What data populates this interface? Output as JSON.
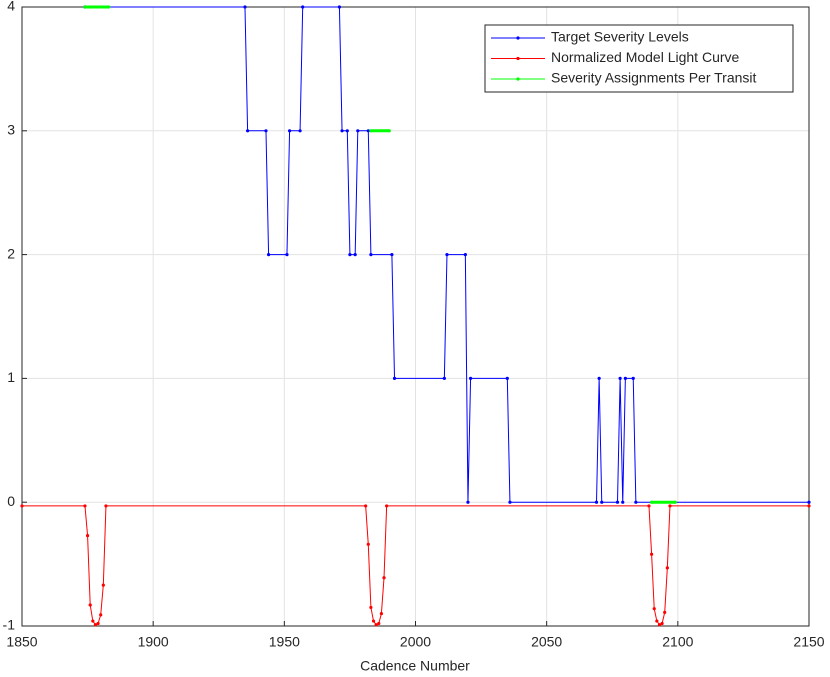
{
  "chart_data": {
    "type": "line",
    "xlabel": "Cadence Number",
    "xlim": [
      1850,
      2150
    ],
    "xticks": [
      1850,
      1900,
      1950,
      2000,
      2050,
      2100,
      2150
    ],
    "ylim": [
      -1,
      4
    ],
    "yticks": [
      -1,
      0,
      1,
      2,
      3,
      4
    ],
    "grid": true,
    "legend": "upper right",
    "series": [
      {
        "name": "Target Severity Levels",
        "color": "#0000ff",
        "x": [
          1874,
          1935,
          1936,
          1943,
          1944,
          1951,
          1952,
          1956,
          1957,
          1971,
          1972,
          1974,
          1975,
          1977,
          1978,
          1982,
          1983,
          1991,
          1992,
          2011,
          2012,
          2019,
          2020,
          2021,
          2035,
          2036,
          2069,
          2070,
          2071,
          2077,
          2078,
          2079,
          2080,
          2083,
          2084,
          2150
        ],
        "values": [
          4,
          4,
          3,
          3,
          2,
          2,
          3,
          3,
          4,
          4,
          3,
          3,
          2,
          2,
          3,
          3,
          2,
          2,
          1,
          1,
          2,
          2,
          0,
          1,
          1,
          0,
          0,
          1,
          0,
          0,
          1,
          0,
          1,
          1,
          0,
          0
        ]
      },
      {
        "name": "Normalized Model Light Curve",
        "color": "#ff0000",
        "x": [
          1850,
          1874,
          1875,
          1876,
          1877,
          1878,
          1879,
          1880,
          1881,
          1882,
          1981,
          1982,
          1983,
          1984,
          1985,
          1986,
          1987,
          1988,
          1989,
          2089,
          2090,
          2091,
          2092,
          2093,
          2094,
          2095,
          2096,
          2097,
          2150
        ],
        "values": [
          -0.03,
          -0.03,
          -0.27,
          -0.83,
          -0.96,
          -0.99,
          -0.98,
          -0.91,
          -0.67,
          -0.03,
          -0.03,
          -0.34,
          -0.85,
          -0.96,
          -0.99,
          -0.98,
          -0.9,
          -0.61,
          -0.03,
          -0.03,
          -0.42,
          -0.86,
          -0.96,
          -0.99,
          -0.98,
          -0.89,
          -0.53,
          -0.03,
          -0.03
        ]
      },
      {
        "name": "Severity Assignments Per Transit",
        "color": "#00ff00",
        "x": [
          1874,
          1883,
          null,
          1983,
          1990,
          null,
          2090,
          2099
        ],
        "values": [
          4,
          4,
          null,
          3,
          3,
          null,
          0,
          0
        ]
      }
    ]
  }
}
